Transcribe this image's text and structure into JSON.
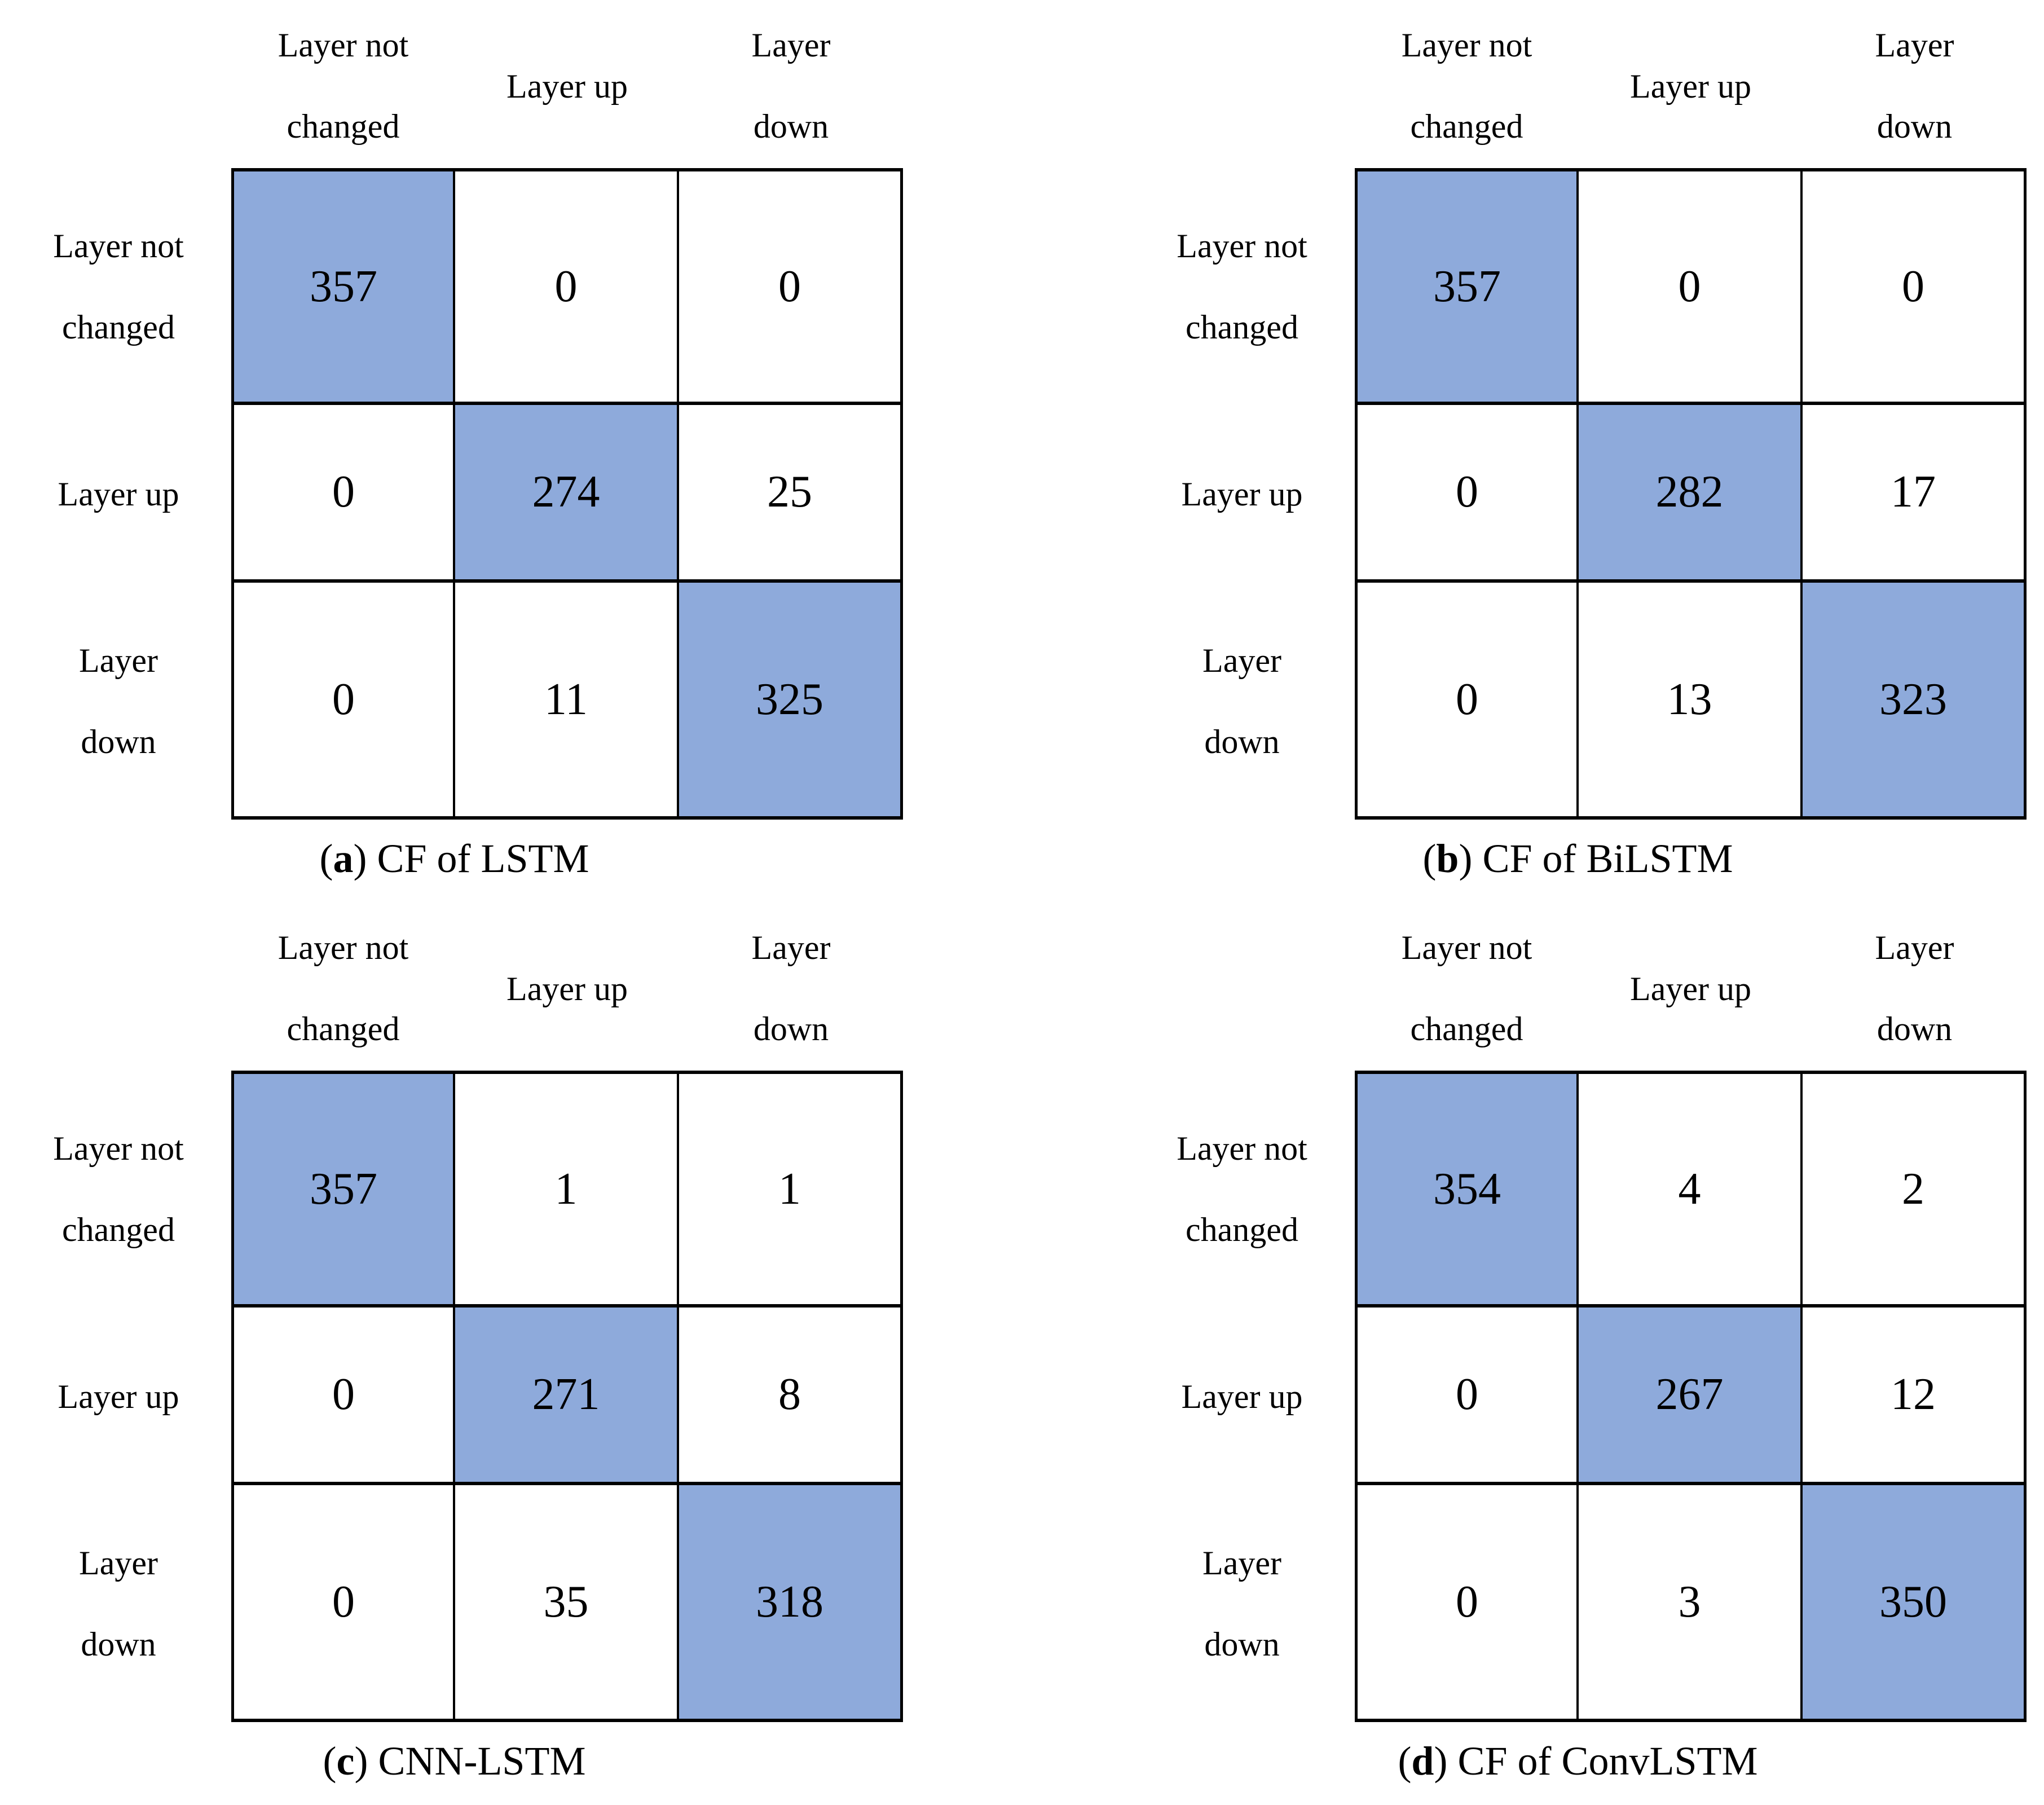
{
  "figure": {
    "background": "#ffffff",
    "text_color": "#000000",
    "border_color": "#000000",
    "highlight_color": "#8EAADB"
  },
  "chart_data": [
    {
      "type": "heatmap",
      "title": "(a) CF of LSTM",
      "caption_open": "(",
      "caption_letter": "a",
      "caption_rest": ") CF of LSTM",
      "col_labels": [
        "Layer not changed",
        "Layer up",
        "Layer down"
      ],
      "col_labels_lines": [
        [
          "Layer not",
          "changed"
        ],
        [
          "Layer up"
        ],
        [
          "Layer",
          "down"
        ]
      ],
      "row_labels": [
        "Layer not changed",
        "Layer up",
        "Layer down"
      ],
      "row_labels_lines": [
        [
          "Layer not",
          "changed"
        ],
        [
          "Layer up"
        ],
        [
          "Layer",
          "down"
        ]
      ],
      "values": [
        [
          357,
          0,
          0
        ],
        [
          0,
          274,
          25
        ],
        [
          0,
          11,
          325
        ]
      ],
      "highlight": "diagonal"
    },
    {
      "type": "heatmap",
      "title": "(b) CF of BiLSTM",
      "caption_open": "(",
      "caption_letter": "b",
      "caption_rest": ") CF of BiLSTM",
      "col_labels": [
        "Layer not changed",
        "Layer up",
        "Layer down"
      ],
      "col_labels_lines": [
        [
          "Layer not",
          "changed"
        ],
        [
          "Layer up"
        ],
        [
          "Layer",
          "down"
        ]
      ],
      "row_labels": [
        "Layer not changed",
        "Layer up",
        "Layer down"
      ],
      "row_labels_lines": [
        [
          "Layer not",
          "changed"
        ],
        [
          "Layer up"
        ],
        [
          "Layer",
          "down"
        ]
      ],
      "values": [
        [
          357,
          0,
          0
        ],
        [
          0,
          282,
          17
        ],
        [
          0,
          13,
          323
        ]
      ],
      "highlight": "diagonal"
    },
    {
      "type": "heatmap",
      "title": "(c) CNN-LSTM",
      "caption_open": "(",
      "caption_letter": "c",
      "caption_rest": ") CNN-LSTM",
      "col_labels": [
        "Layer not changed",
        "Layer up",
        "Layer down"
      ],
      "col_labels_lines": [
        [
          "Layer not",
          "changed"
        ],
        [
          "Layer up"
        ],
        [
          "Layer",
          "down"
        ]
      ],
      "row_labels": [
        "Layer not changed",
        "Layer up",
        "Layer down"
      ],
      "row_labels_lines": [
        [
          "Layer not",
          "changed"
        ],
        [
          "Layer up"
        ],
        [
          "Layer",
          "down"
        ]
      ],
      "values": [
        [
          357,
          1,
          1
        ],
        [
          0,
          271,
          8
        ],
        [
          0,
          35,
          318
        ]
      ],
      "highlight": "diagonal"
    },
    {
      "type": "heatmap",
      "title": "(d) CF of ConvLSTM",
      "caption_open": "(",
      "caption_letter": "d",
      "caption_rest": ") CF of ConvLSTM",
      "col_labels": [
        "Layer not changed",
        "Layer up",
        "Layer down"
      ],
      "col_labels_lines": [
        [
          "Layer not",
          "changed"
        ],
        [
          "Layer up"
        ],
        [
          "Layer",
          "down"
        ]
      ],
      "row_labels": [
        "Layer not changed",
        "Layer up",
        "Layer down"
      ],
      "row_labels_lines": [
        [
          "Layer not",
          "changed"
        ],
        [
          "Layer up"
        ],
        [
          "Layer",
          "down"
        ]
      ],
      "values": [
        [
          354,
          4,
          2
        ],
        [
          0,
          267,
          12
        ],
        [
          0,
          3,
          350
        ]
      ],
      "highlight": "diagonal"
    }
  ]
}
